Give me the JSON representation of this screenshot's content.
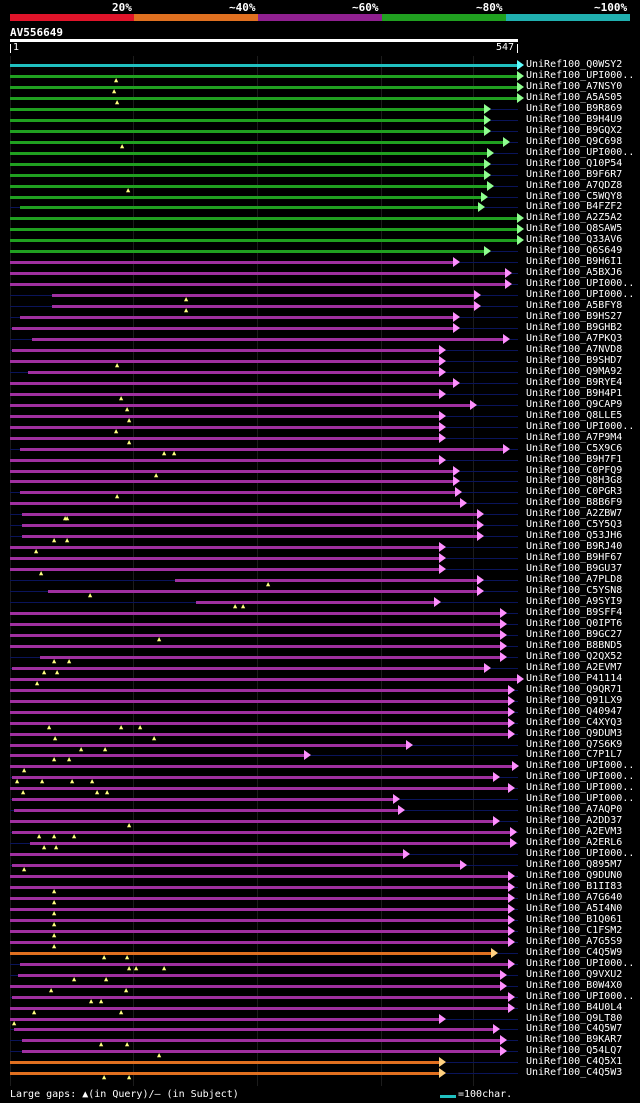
{
  "legend": {
    "labels": [
      "20%",
      "~40%",
      "~60%",
      "~80%",
      "~100%"
    ],
    "colors": [
      "#e0142a",
      "#e07020",
      "#902090",
      "#20a020",
      "#20b0b0"
    ]
  },
  "query": {
    "name": "AV556649",
    "start": "1",
    "end": "547"
  },
  "hits": [
    {
      "label": "UniRef100_Q0WSY2",
      "c": "cyan"
    },
    {
      "label": "UniRef100_UPI000..",
      "c": "green"
    },
    {
      "label": "UniRef100_A7NSY0",
      "c": "green"
    },
    {
      "label": "UniRef100_A5AS05",
      "c": "green"
    },
    {
      "label": "UniRef100_B9R869",
      "c": "green"
    },
    {
      "label": "UniRef100_B9H4U9",
      "c": "green"
    },
    {
      "label": "UniRef100_B9GQX2",
      "c": "green"
    },
    {
      "label": "UniRef100_Q9C698",
      "c": "green"
    },
    {
      "label": "UniRef100_UPI000..",
      "c": "green"
    },
    {
      "label": "UniRef100_Q10P54",
      "c": "green"
    },
    {
      "label": "UniRef100_B9F6R7",
      "c": "green"
    },
    {
      "label": "UniRef100_A7QDZ8",
      "c": "green"
    },
    {
      "label": "UniRef100_C5WQY8",
      "c": "green"
    },
    {
      "label": "UniRef100_B4FZF2",
      "c": "green"
    },
    {
      "label": "UniRef100_A2Z5A2",
      "c": "green"
    },
    {
      "label": "UniRef100_Q8SAW5",
      "c": "green"
    },
    {
      "label": "UniRef100_Q33AV6",
      "c": "green"
    },
    {
      "label": "UniRef100_Q6S649",
      "c": "green"
    },
    {
      "label": "UniRef100_B9H6I1",
      "c": "purple"
    },
    {
      "label": "UniRef100_A5BXJ6",
      "c": "purple"
    },
    {
      "label": "UniRef100_UPI000..",
      "c": "purple"
    },
    {
      "label": "UniRef100_UPI000..",
      "c": "purple"
    },
    {
      "label": "UniRef100_A5BFY8",
      "c": "purple"
    },
    {
      "label": "UniRef100_B9HS27",
      "c": "purple"
    },
    {
      "label": "UniRef100_B9GHB2",
      "c": "purple"
    },
    {
      "label": "UniRef100_A7PKQ3",
      "c": "purple"
    },
    {
      "label": "UniRef100_A7NVD8",
      "c": "purple"
    },
    {
      "label": "UniRef100_B9SHD7",
      "c": "purple"
    },
    {
      "label": "UniRef100_Q9MA92",
      "c": "purple"
    },
    {
      "label": "UniRef100_B9RYE4",
      "c": "purple"
    },
    {
      "label": "UniRef100_B9H4P1",
      "c": "purple"
    },
    {
      "label": "UniRef100_Q9CAP9",
      "c": "purple"
    },
    {
      "label": "UniRef100_Q8LLE5",
      "c": "purple"
    },
    {
      "label": "UniRef100_UPI000..",
      "c": "purple"
    },
    {
      "label": "UniRef100_A7P9M4",
      "c": "purple"
    },
    {
      "label": "UniRef100_C5X9C6",
      "c": "purple"
    },
    {
      "label": "UniRef100_B9H7F1",
      "c": "purple"
    },
    {
      "label": "UniRef100_C0PFQ9",
      "c": "purple"
    },
    {
      "label": "UniRef100_Q8H3G8",
      "c": "purple"
    },
    {
      "label": "UniRef100_C0PGR3",
      "c": "purple"
    },
    {
      "label": "UniRef100_B8B6F9",
      "c": "purple"
    },
    {
      "label": "UniRef100_A2ZBW7",
      "c": "purple"
    },
    {
      "label": "UniRef100_C5Y5Q3",
      "c": "purple"
    },
    {
      "label": "UniRef100_Q53JH6",
      "c": "purple"
    },
    {
      "label": "UniRef100_B9RJ40",
      "c": "purple"
    },
    {
      "label": "UniRef100_B9HF67",
      "c": "purple"
    },
    {
      "label": "UniRef100_B9GU37",
      "c": "purple"
    },
    {
      "label": "UniRef100_A7PLD8",
      "c": "purple"
    },
    {
      "label": "UniRef100_C5YSN8",
      "c": "purple"
    },
    {
      "label": "UniRef100_A9SYI9",
      "c": "purple"
    },
    {
      "label": "UniRef100_B9SFF4",
      "c": "purple"
    },
    {
      "label": "UniRef100_Q0IPT6",
      "c": "purple"
    },
    {
      "label": "UniRef100_B9GC27",
      "c": "purple"
    },
    {
      "label": "UniRef100_B8BND5",
      "c": "purple"
    },
    {
      "label": "UniRef100_Q2QX52",
      "c": "purple"
    },
    {
      "label": "UniRef100_A2EVM7",
      "c": "purple"
    },
    {
      "label": "UniRef100_P41114",
      "c": "purple"
    },
    {
      "label": "UniRef100_Q9QR71",
      "c": "purple"
    },
    {
      "label": "UniRef100_Q91LX9",
      "c": "purple"
    },
    {
      "label": "UniRef100_Q40947",
      "c": "purple"
    },
    {
      "label": "UniRef100_C4XYQ3",
      "c": "purple"
    },
    {
      "label": "UniRef100_Q9DUM3",
      "c": "purple"
    },
    {
      "label": "UniRef100_Q7S6K9",
      "c": "purple"
    },
    {
      "label": "UniRef100_C7P1L7",
      "c": "purple"
    },
    {
      "label": "UniRef100_UPI000..",
      "c": "purple"
    },
    {
      "label": "UniRef100_UPI000..",
      "c": "purple"
    },
    {
      "label": "UniRef100_UPI000..",
      "c": "purple"
    },
    {
      "label": "UniRef100_UPI000..",
      "c": "purple"
    },
    {
      "label": "UniRef100_A7AQP0",
      "c": "purple"
    },
    {
      "label": "UniRef100_A2DD37",
      "c": "purple"
    },
    {
      "label": "UniRef100_A2EVM3",
      "c": "purple"
    },
    {
      "label": "UniRef100_A2ERL6",
      "c": "purple"
    },
    {
      "label": "UniRef100_UPI000..",
      "c": "purple"
    },
    {
      "label": "UniRef100_Q895M7",
      "c": "purple"
    },
    {
      "label": "UniRef100_Q9DUN0",
      "c": "purple"
    },
    {
      "label": "UniRef100_B1II83",
      "c": "purple"
    },
    {
      "label": "UniRef100_A7G640",
      "c": "purple"
    },
    {
      "label": "UniRef100_A5I4N0",
      "c": "purple"
    },
    {
      "label": "UniRef100_B1Q061",
      "c": "purple"
    },
    {
      "label": "UniRef100_C1FSM2",
      "c": "purple"
    },
    {
      "label": "UniRef100_A7G5S9",
      "c": "purple"
    },
    {
      "label": "UniRef100_C4Q5W9",
      "c": "orange"
    },
    {
      "label": "UniRef100_UPI000..",
      "c": "purple"
    },
    {
      "label": "UniRef100_Q9VXU2",
      "c": "purple"
    },
    {
      "label": "UniRef100_B0W4X0",
      "c": "purple"
    },
    {
      "label": "UniRef100_UPI000..",
      "c": "purple"
    },
    {
      "label": "UniRef100_B4U0L4",
      "c": "purple"
    },
    {
      "label": "UniRef100_Q9LT80",
      "c": "purple"
    },
    {
      "label": "UniRef100_C4Q5W7",
      "c": "purple"
    },
    {
      "label": "UniRef100_B9KAR7",
      "c": "purple"
    },
    {
      "label": "UniRef100_Q54LQ7",
      "c": "purple"
    },
    {
      "label": "UniRef100_C4Q5X1",
      "c": "orange"
    },
    {
      "label": "UniRef100_C4Q5W3",
      "c": "orange"
    }
  ],
  "footer": {
    "gaps_text": "Large gaps: ▲(in Query)/– (in Subject)",
    "scale_text": "=100char."
  }
}
